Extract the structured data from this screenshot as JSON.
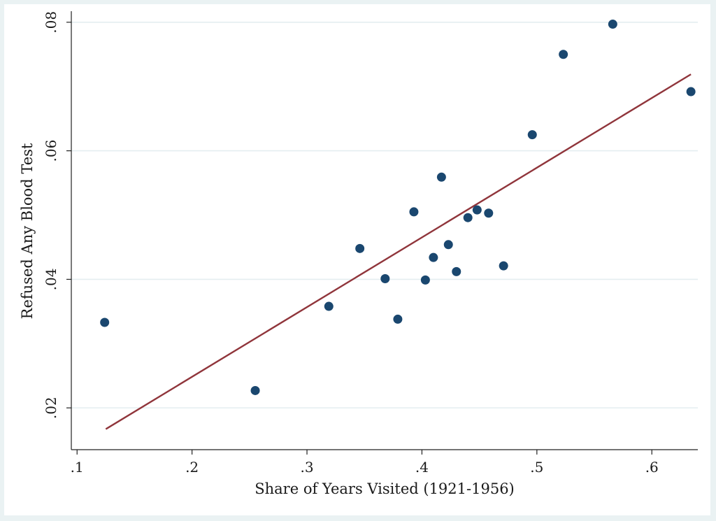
{
  "chart_data": {
    "type": "scatter",
    "title": "",
    "xlabel": "Share of Years Visited (1921-1956)",
    "ylabel": "Refused Any Blood Test",
    "xlim": [
      0.095,
      0.64
    ],
    "ylim": [
      0.0135,
      0.0815
    ],
    "xticks": [
      {
        "value": 0.1,
        "label": ".1"
      },
      {
        "value": 0.2,
        "label": ".2"
      },
      {
        "value": 0.3,
        "label": ".3"
      },
      {
        "value": 0.4,
        "label": ".4"
      },
      {
        "value": 0.5,
        "label": ".5"
      },
      {
        "value": 0.6,
        "label": ".6"
      }
    ],
    "yticks": [
      {
        "value": 0.02,
        "label": ".02"
      },
      {
        "value": 0.04,
        "label": ".04"
      },
      {
        "value": 0.06,
        "label": ".06"
      },
      {
        "value": 0.08,
        "label": ".08"
      }
    ],
    "grid": "horizontal",
    "legend": "none",
    "colors": {
      "points": "#1a476f",
      "fit_line": "#90353b",
      "grid": "#e4eef0"
    },
    "points": [
      {
        "x": 0.124,
        "y": 0.0333
      },
      {
        "x": 0.255,
        "y": 0.0227
      },
      {
        "x": 0.319,
        "y": 0.0358
      },
      {
        "x": 0.346,
        "y": 0.0448
      },
      {
        "x": 0.368,
        "y": 0.0401
      },
      {
        "x": 0.379,
        "y": 0.0338
      },
      {
        "x": 0.393,
        "y": 0.0505
      },
      {
        "x": 0.403,
        "y": 0.0399
      },
      {
        "x": 0.41,
        "y": 0.0434
      },
      {
        "x": 0.417,
        "y": 0.0559
      },
      {
        "x": 0.423,
        "y": 0.0454
      },
      {
        "x": 0.43,
        "y": 0.0412
      },
      {
        "x": 0.44,
        "y": 0.0496
      },
      {
        "x": 0.448,
        "y": 0.0508
      },
      {
        "x": 0.458,
        "y": 0.0503
      },
      {
        "x": 0.471,
        "y": 0.0421
      },
      {
        "x": 0.496,
        "y": 0.0625
      },
      {
        "x": 0.523,
        "y": 0.075
      },
      {
        "x": 0.566,
        "y": 0.0797
      },
      {
        "x": 0.634,
        "y": 0.0692
      }
    ],
    "fit_line": [
      {
        "x": 0.125,
        "y": 0.0167
      },
      {
        "x": 0.634,
        "y": 0.0719
      }
    ]
  }
}
